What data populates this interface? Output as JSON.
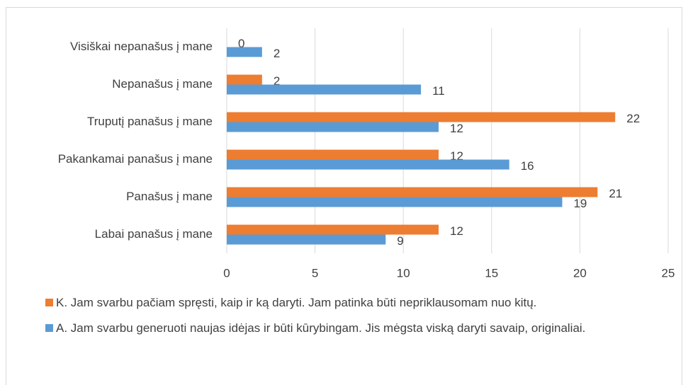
{
  "chart_data": {
    "type": "hbar",
    "categories": [
      "Visiškai nepanašus į mane",
      "Nepanašus į mane",
      "Truputį panašus į mane",
      "Pakankamai panašus į mane",
      "Panašus į mane",
      "Labai panašus į mane"
    ],
    "series": [
      {
        "name": "K. Jam svarbu pačiam spręsti, kaip ir ką daryti. Jam patinka būti nepriklausomam nuo kitų.",
        "color": "#ED7D31",
        "values": [
          0,
          2,
          22,
          12,
          21,
          12
        ]
      },
      {
        "name": "A. Jam svarbu generuoti naujas idėjas ir būti kūrybingam. Jis mėgsta viską daryti savaip, originaliai.",
        "color": "#5B9BD5",
        "values": [
          2,
          11,
          12,
          16,
          19,
          9
        ]
      }
    ],
    "xlim": [
      0,
      25
    ],
    "xticks": [
      0,
      5,
      10,
      15,
      20,
      25
    ],
    "grid": true,
    "legend": "bottom"
  }
}
